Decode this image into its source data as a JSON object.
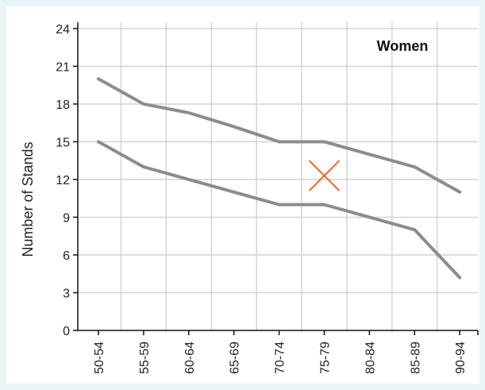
{
  "chart_data": {
    "type": "line",
    "title": "",
    "annotation": "Women",
    "xlabel": "",
    "ylabel": "Number of Stands",
    "categories": [
      "50-54",
      "55-59",
      "60-64",
      "65-69",
      "70-74",
      "75-79",
      "80-84",
      "85-89",
      "90-94"
    ],
    "yticks": [
      0,
      3,
      6,
      9,
      12,
      15,
      18,
      21,
      24
    ],
    "ylim": [
      0,
      24.5
    ],
    "grid": true,
    "series": [
      {
        "values": [
          20,
          18,
          17.3,
          16.2,
          15,
          15,
          14,
          13,
          11
        ],
        "color": "#8c8c8c"
      },
      {
        "values": [
          15,
          13,
          12,
          11,
          10,
          10,
          9,
          8,
          4.2
        ],
        "color": "#8c8c8c"
      }
    ],
    "marker": {
      "category": "75-79",
      "y": 12.3,
      "symbol": "x",
      "color": "#e8662d"
    }
  }
}
